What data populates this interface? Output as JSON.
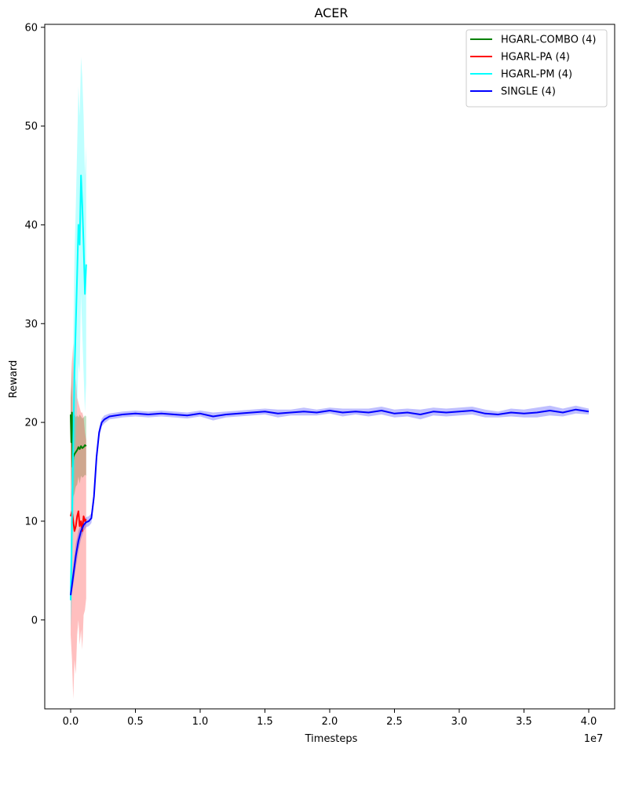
{
  "chart_data": {
    "type": "line",
    "title": "ACER",
    "xlabel": "Timesteps",
    "ylabel": "Reward",
    "x_offset_label": "1e7",
    "xlim": [
      -2000000,
      42000000
    ],
    "ylim": [
      -9,
      60.3
    ],
    "xticks": [
      0,
      5000000,
      10000000,
      15000000,
      20000000,
      25000000,
      30000000,
      35000000,
      40000000
    ],
    "xtick_labels": [
      "0.0",
      "0.5",
      "1.0",
      "1.5",
      "2.0",
      "2.5",
      "3.0",
      "3.5",
      "4.0"
    ],
    "yticks": [
      0,
      10,
      20,
      30,
      40,
      50,
      60
    ],
    "ytick_labels": [
      "0",
      "10",
      "20",
      "30",
      "40",
      "50",
      "60"
    ],
    "grid": false,
    "legend_position": "top-right",
    "series": [
      {
        "name": "HGARL-COMBO (4)",
        "color": "#008000",
        "x": [
          0,
          50000,
          100000,
          150000,
          200000,
          300000,
          400000,
          500000,
          600000,
          700000,
          800000,
          900000,
          1000000,
          1100000,
          1200000
        ],
        "y": [
          20.8,
          18.0,
          21.0,
          15.5,
          16.5,
          16.8,
          17.0,
          17.2,
          17.5,
          17.3,
          17.6,
          17.4,
          17.5,
          17.7,
          17.6
        ],
        "band": [
          3.0,
          4.5,
          6.0,
          3.5,
          4.0,
          4.0,
          3.5,
          3.5,
          3.0,
          3.5,
          3.0,
          3.0,
          3.0,
          3.0,
          3.0
        ]
      },
      {
        "name": "HGARL-PA (4)",
        "color": "#ff0000",
        "x": [
          0,
          100000,
          200000,
          300000,
          400000,
          500000,
          600000,
          700000,
          800000,
          900000,
          1000000,
          1100000,
          1200000
        ],
        "y": [
          10.5,
          11.0,
          10.0,
          9.0,
          9.5,
          10.5,
          11.0,
          9.5,
          10.0,
          9.0,
          10.5,
          10.0,
          10.2
        ],
        "band": [
          12.0,
          15.0,
          18.0,
          13.0,
          15.0,
          12.0,
          11.0,
          12.0,
          11.0,
          12.0,
          10.0,
          9.0,
          8.0
        ]
      },
      {
        "name": "HGARL-PM (4)",
        "color": "#00ffff",
        "x": [
          0,
          100000,
          200000,
          300000,
          400000,
          500000,
          600000,
          700000,
          800000,
          900000,
          1000000,
          1100000,
          1200000
        ],
        "y": [
          2.0,
          10.0,
          18.0,
          25.0,
          30.0,
          35.0,
          40.0,
          38.0,
          45.0,
          42.0,
          38.0,
          33.0,
          36.0
        ],
        "band": [
          3.0,
          8.0,
          10.0,
          12.0,
          12.0,
          13.0,
          14.0,
          13.0,
          12.0,
          13.0,
          13.0,
          12.0,
          12.0
        ]
      },
      {
        "name": "SINGLE (4)",
        "color": "#0000ff",
        "x": [
          0,
          200000,
          400000,
          600000,
          800000,
          1000000,
          1200000,
          1400000,
          1600000,
          1800000,
          2000000,
          2200000,
          2400000,
          2600000,
          3000000,
          3500000,
          4000000,
          5000000,
          6000000,
          7000000,
          8000000,
          9000000,
          10000000,
          11000000,
          12000000,
          13000000,
          14000000,
          15000000,
          16000000,
          17000000,
          18000000,
          19000000,
          20000000,
          21000000,
          22000000,
          23000000,
          24000000,
          25000000,
          26000000,
          27000000,
          28000000,
          29000000,
          30000000,
          31000000,
          32000000,
          33000000,
          34000000,
          35000000,
          36000000,
          37000000,
          38000000,
          39000000,
          40000000
        ],
        "y": [
          2.5,
          4.5,
          6.5,
          8.0,
          9.0,
          9.6,
          9.9,
          10.0,
          10.3,
          12.5,
          16.5,
          19.0,
          20.0,
          20.3,
          20.6,
          20.7,
          20.8,
          20.9,
          20.8,
          20.9,
          20.8,
          20.7,
          20.9,
          20.6,
          20.8,
          20.9,
          21.0,
          21.1,
          20.9,
          21.0,
          21.1,
          21.0,
          21.2,
          21.0,
          21.1,
          21.0,
          21.2,
          20.9,
          21.0,
          20.8,
          21.1,
          21.0,
          21.1,
          21.2,
          20.9,
          20.8,
          21.0,
          20.9,
          21.0,
          21.2,
          21.0,
          21.3,
          21.1
        ],
        "band": [
          0.4,
          1.0,
          1.2,
          1.0,
          0.8,
          0.6,
          0.5,
          0.5,
          0.5,
          0.6,
          0.6,
          0.5,
          0.4,
          0.4,
          0.3,
          0.3,
          0.3,
          0.3,
          0.3,
          0.3,
          0.3,
          0.3,
          0.3,
          0.4,
          0.3,
          0.3,
          0.3,
          0.3,
          0.4,
          0.3,
          0.4,
          0.3,
          0.3,
          0.4,
          0.3,
          0.4,
          0.4,
          0.4,
          0.4,
          0.5,
          0.4,
          0.4,
          0.4,
          0.4,
          0.4,
          0.3,
          0.4,
          0.4,
          0.5,
          0.5,
          0.4,
          0.4,
          0.3
        ]
      }
    ]
  }
}
